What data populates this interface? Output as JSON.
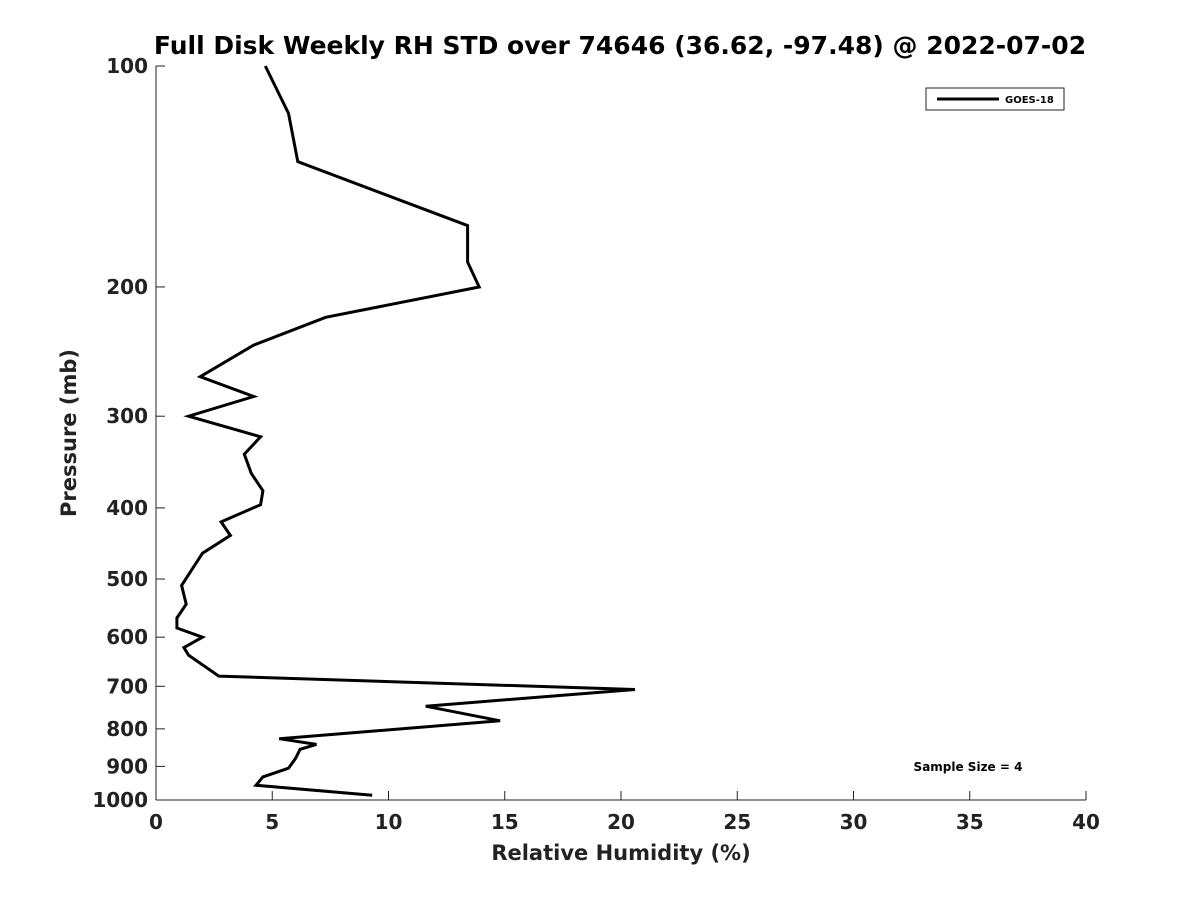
{
  "chart_data": {
    "type": "line",
    "title": "Full Disk Weekly RH STD over 74646 (36.62, -97.48) @ 2022-07-02",
    "xlabel": "Relative Humidity (%)",
    "ylabel": "Pressure (mb)",
    "xlim": [
      0,
      40
    ],
    "ylim": [
      100,
      1000
    ],
    "y_scale": "log",
    "y_reversed": true,
    "x_ticks": [
      "0",
      "5",
      "10",
      "15",
      "20",
      "25",
      "30",
      "35",
      "40"
    ],
    "y_ticks": [
      "100",
      "200",
      "300",
      "400",
      "500",
      "600",
      "700",
      "800",
      "900",
      "1000"
    ],
    "legend_position": "top-right",
    "grid": false,
    "series": [
      {
        "name": "GOES-18",
        "color": "#000000",
        "points": [
          [
            4.7,
            100
          ],
          [
            5.7,
            116
          ],
          [
            6.1,
            135
          ],
          [
            13.4,
            165
          ],
          [
            13.4,
            185
          ],
          [
            13.9,
            200
          ],
          [
            7.3,
            220
          ],
          [
            4.2,
            240
          ],
          [
            1.9,
            265
          ],
          [
            4.2,
            282
          ],
          [
            1.4,
            300
          ],
          [
            4.5,
            320
          ],
          [
            3.8,
            338
          ],
          [
            4.1,
            359
          ],
          [
            4.6,
            379
          ],
          [
            4.5,
            396
          ],
          [
            2.8,
            418
          ],
          [
            3.2,
            436
          ],
          [
            2.0,
            461
          ],
          [
            1.1,
            510
          ],
          [
            1.3,
            541
          ],
          [
            0.9,
            565
          ],
          [
            0.9,
            583
          ],
          [
            2.0,
            600
          ],
          [
            1.2,
            620
          ],
          [
            1.4,
            635
          ],
          [
            2.7,
            678
          ],
          [
            20.6,
            707
          ],
          [
            11.6,
            745
          ],
          [
            14.8,
            780
          ],
          [
            5.3,
            825
          ],
          [
            6.9,
            840
          ],
          [
            6.2,
            853
          ],
          [
            6.0,
            878
          ],
          [
            5.7,
            905
          ],
          [
            4.6,
            930
          ],
          [
            4.3,
            955
          ],
          [
            9.3,
            985
          ]
        ]
      }
    ],
    "annotations": [
      "Sample Size = 4"
    ]
  }
}
